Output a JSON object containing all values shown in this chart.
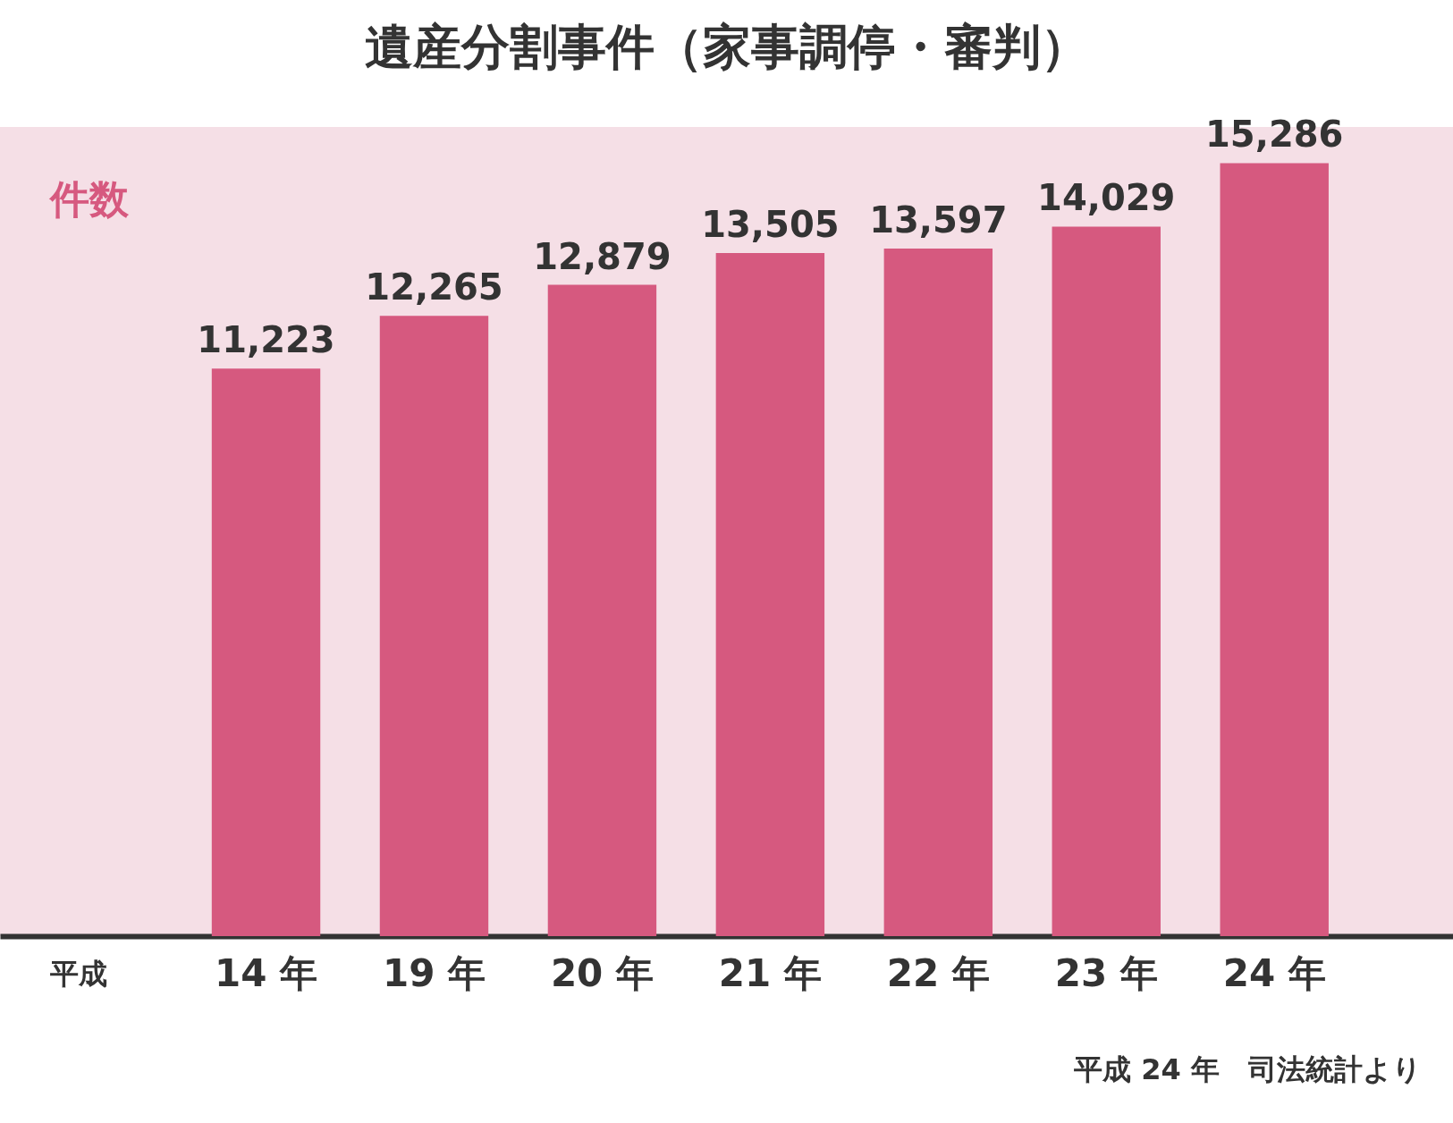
{
  "chart_data": {
    "type": "bar",
    "title": "遺産分割事件（家事調停・審判）",
    "ylabel": "件数",
    "xlabel": "平成",
    "categories": [
      "14 年",
      "19 年",
      "20 年",
      "21 年",
      "22 年",
      "23 年",
      "24 年"
    ],
    "values": [
      11223,
      12265,
      12879,
      13505,
      13597,
      14029,
      15286
    ],
    "color": "#d6597f",
    "value_labels": [
      "11,223",
      "12,265",
      "12,879",
      "13,505",
      "13,597",
      "14,029",
      "15,286"
    ],
    "annotations": [
      "平成 24 年　司法統計より"
    ]
  }
}
